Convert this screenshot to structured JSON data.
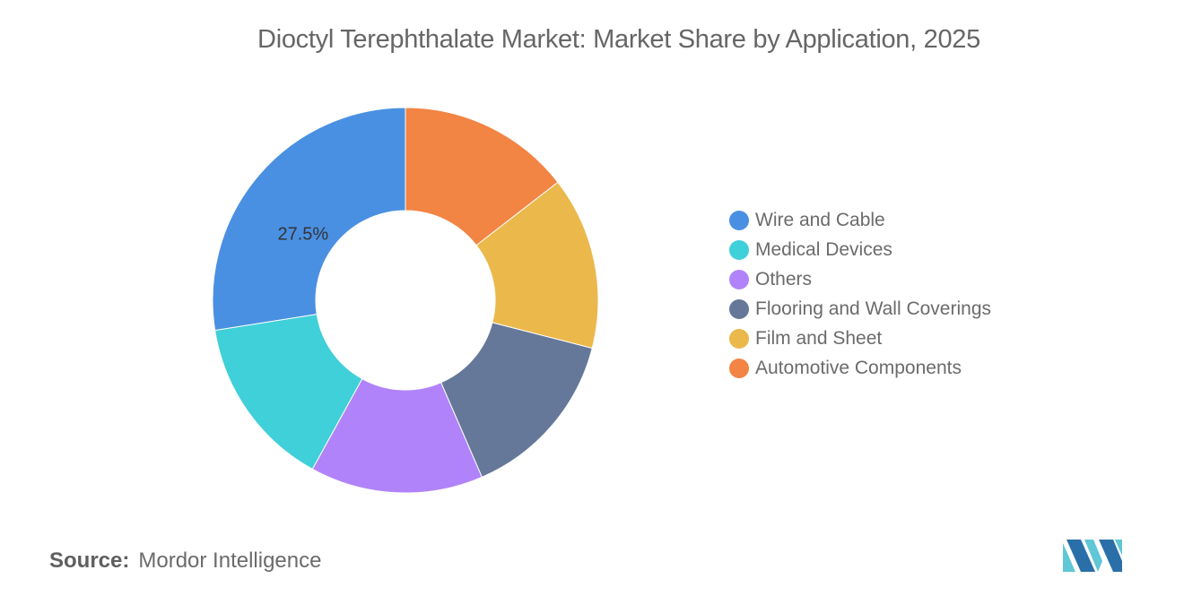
{
  "title": "Dioctyl Terephthalate Market: Market Share by Application, 2025",
  "chart_data": {
    "type": "pie",
    "variant": "donut",
    "title": "Dioctyl Terephthalate Market: Market Share by Application, 2025",
    "legend_position": "right",
    "start_angle": "12 o'clock",
    "direction": "counter-clockwise",
    "slices": [
      {
        "label": "Wire and Cable",
        "value": 27.5,
        "color": "#4A90E2",
        "data_label": "27.5%"
      },
      {
        "label": "Medical Devices",
        "value": 14.5,
        "color": "#3FD0D9",
        "data_label": ""
      },
      {
        "label": "Others",
        "value": 14.5,
        "color": "#B083FA",
        "data_label": ""
      },
      {
        "label": "Flooring and Wall Coverings",
        "value": 14.5,
        "color": "#657899",
        "data_label": ""
      },
      {
        "label": "Film and Sheet",
        "value": 14.5,
        "color": "#EBB84B",
        "data_label": ""
      },
      {
        "label": "Automotive Components",
        "value": 14.5,
        "color": "#F28444",
        "data_label": ""
      }
    ]
  },
  "source": {
    "label": "Source:",
    "value": "Mordor Intelligence"
  },
  "logo": {
    "icon": "mordor-intelligence-logo-icon",
    "color_light": "#5FC7D6",
    "color_dark": "#2A6FA8"
  }
}
